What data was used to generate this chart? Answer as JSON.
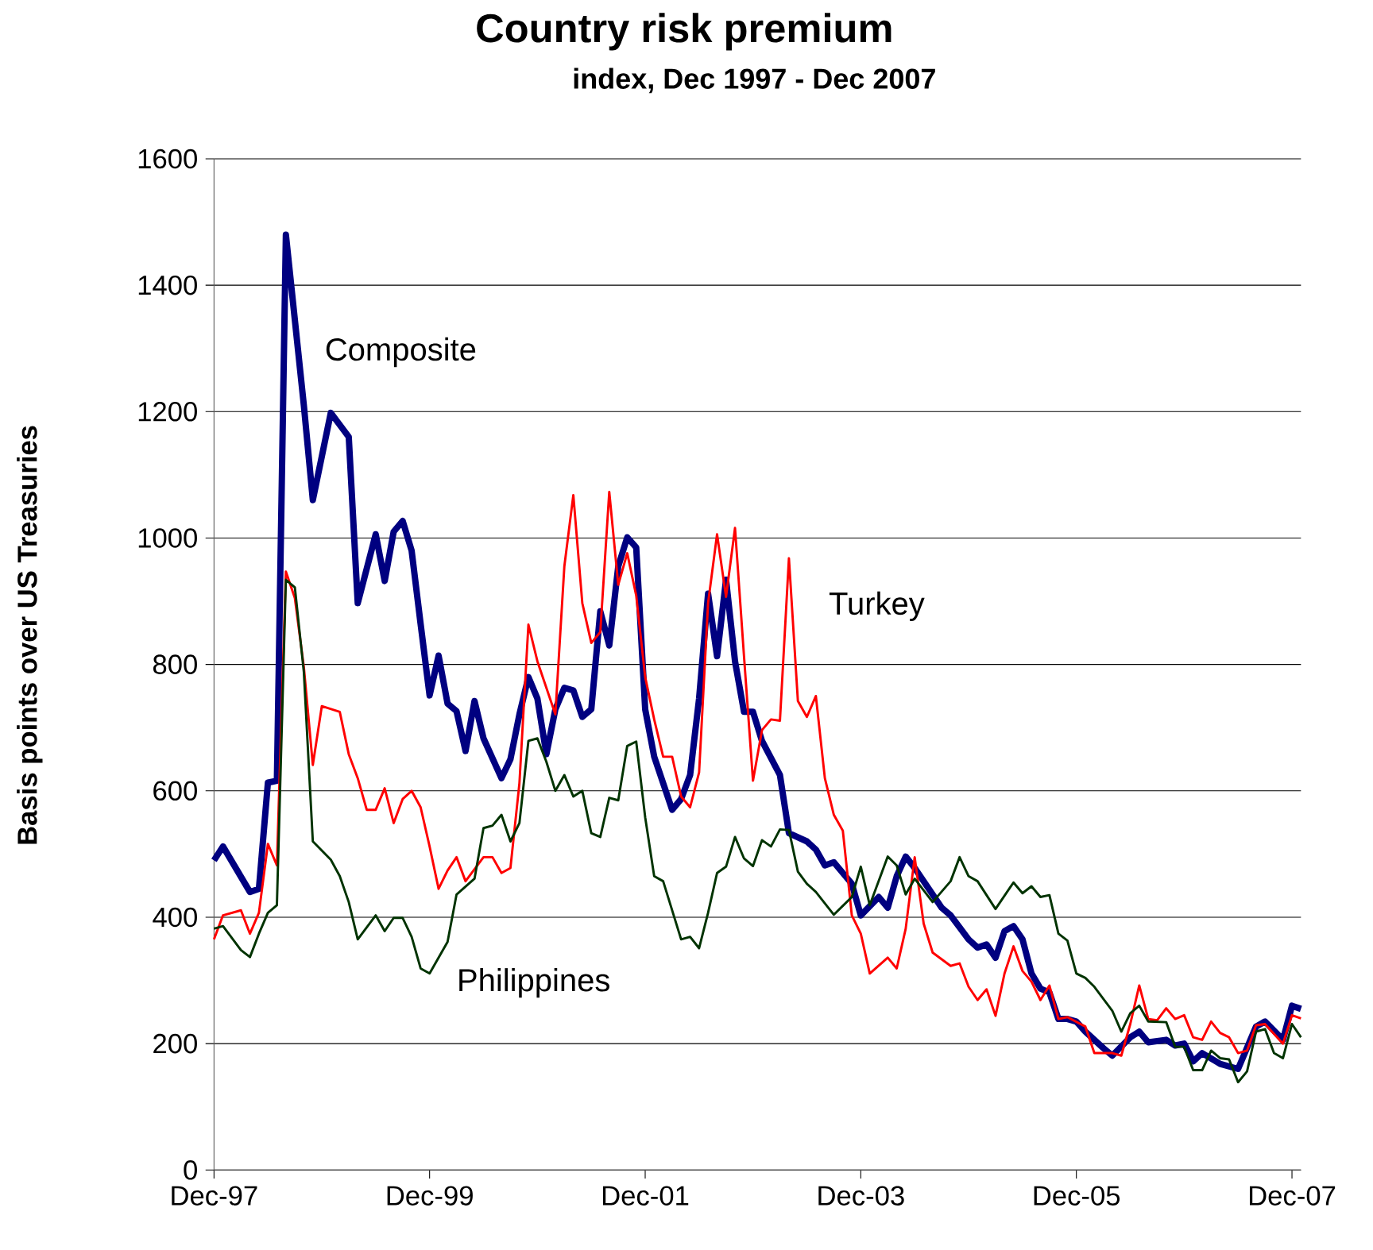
{
  "chart_data": {
    "type": "line",
    "title": "Country risk premium",
    "subtitle": "index, Dec 1997 - Dec 2007",
    "ylabel": "Basis points over US Treasuries",
    "xlim": [
      "1997-12",
      "2008-01"
    ],
    "ylim": [
      0,
      1600
    ],
    "xticks": [
      {
        "value": "1997-12",
        "label": "Dec-97"
      },
      {
        "value": "1999-12",
        "label": "Dec-99"
      },
      {
        "value": "2001-12",
        "label": "Dec-01"
      },
      {
        "value": "2003-12",
        "label": "Dec-03"
      },
      {
        "value": "2005-12",
        "label": "Dec-05"
      },
      {
        "value": "2007-12",
        "label": "Dec-07"
      }
    ],
    "yticks": [
      0,
      200,
      400,
      600,
      800,
      1000,
      1200,
      1400,
      1600
    ],
    "grid": "y",
    "legend": false,
    "marker": "none",
    "line_style": "solid",
    "series": [
      {
        "name": "Composite",
        "color": "#000080",
        "x": [
          "1997-12",
          "1998-01",
          "1998-04",
          "1998-05",
          "1998-06",
          "1998-07",
          "1998-08",
          "1998-10",
          "1998-11",
          "1999-01",
          "1999-03",
          "1999-04",
          "1999-06",
          "1999-07",
          "1999-08",
          "1999-09",
          "1999-10",
          "1999-11",
          "1999-12",
          "2000-01",
          "2000-02",
          "2000-03",
          "2000-04",
          "2000-05",
          "2000-06",
          "2000-08",
          "2000-09",
          "2000-10",
          "2000-11",
          "2000-12",
          "2001-01",
          "2001-02",
          "2001-03",
          "2001-04",
          "2001-05",
          "2001-06",
          "2001-07",
          "2001-08",
          "2001-09",
          "2001-10",
          "2001-11",
          "2001-12",
          "2002-01",
          "2002-03",
          "2002-04",
          "2002-05",
          "2002-06",
          "2002-07",
          "2002-08",
          "2002-09",
          "2002-10",
          "2002-11",
          "2002-12",
          "2003-01",
          "2003-03",
          "2003-04",
          "2003-06",
          "2003-07",
          "2003-08",
          "2003-09",
          "2003-11",
          "2003-12",
          "2004-02",
          "2004-03",
          "2004-04",
          "2004-05",
          "2004-06",
          "2004-09",
          "2004-10",
          "2004-12",
          "2005-01",
          "2005-02",
          "2005-03",
          "2005-04",
          "2005-05",
          "2005-06",
          "2005-07",
          "2005-08",
          "2005-09",
          "2005-10",
          "2005-11",
          "2005-12",
          "2006-01",
          "2006-03",
          "2006-04",
          "2006-06",
          "2006-07",
          "2006-08",
          "2006-10",
          "2006-11",
          "2006-12",
          "2007-01",
          "2007-02",
          "2007-04",
          "2007-06",
          "2007-08",
          "2007-09",
          "2007-11",
          "2007-12",
          "2008-01"
        ],
        "values": [
          490,
          512,
          440,
          445,
          613,
          616,
          1480,
          1210,
          1060,
          1198,
          1160,
          897,
          1006,
          932,
          1010,
          1027,
          980,
          864,
          751,
          814,
          738,
          726,
          663,
          742,
          683,
          620,
          650,
          721,
          780,
          746,
          658,
          729,
          763,
          759,
          717,
          729,
          884,
          830,
          955,
          1001,
          985,
          729,
          654,
          570,
          587,
          625,
          746,
          912,
          813,
          934,
          805,
          725,
          725,
          679,
          625,
          533,
          520,
          507,
          482,
          487,
          453,
          403,
          432,
          415,
          465,
          496,
          478,
          415,
          403,
          365,
          352,
          357,
          336,
          378,
          386,
          365,
          311,
          287,
          281,
          239,
          239,
          235,
          219,
          193,
          181,
          210,
          219,
          202,
          206,
          197,
          200,
          172,
          185,
          168,
          160,
          227,
          235,
          206,
          260,
          255
        ]
      },
      {
        "name": "Turkey",
        "color": "#ff0000",
        "x": [
          "1997-12",
          "1998-01",
          "1998-03",
          "1998-04",
          "1998-05",
          "1998-06",
          "1998-07",
          "1998-08",
          "1998-09",
          "1998-10",
          "1998-11",
          "1998-12",
          "1999-02",
          "1999-03",
          "1999-04",
          "1999-05",
          "1999-06",
          "1999-07",
          "1999-08",
          "1999-09",
          "1999-10",
          "1999-11",
          "1999-12",
          "2000-01",
          "2000-02",
          "2000-03",
          "2000-04",
          "2000-06",
          "2000-07",
          "2000-08",
          "2000-09",
          "2000-10",
          "2000-11",
          "2000-12",
          "2001-02",
          "2001-03",
          "2001-04",
          "2001-05",
          "2001-06",
          "2001-07",
          "2001-08",
          "2001-09",
          "2001-10",
          "2001-11",
          "2001-12",
          "2002-01",
          "2002-02",
          "2002-03",
          "2002-04",
          "2002-05",
          "2002-06",
          "2002-07",
          "2002-08",
          "2002-09",
          "2002-10",
          "2002-11",
          "2002-12",
          "2003-01",
          "2003-02",
          "2003-03",
          "2003-04",
          "2003-05",
          "2003-06",
          "2003-07",
          "2003-08",
          "2003-09",
          "2003-10",
          "2003-11",
          "2003-12",
          "2004-01",
          "2004-03",
          "2004-04",
          "2004-05",
          "2004-06",
          "2004-07",
          "2004-08",
          "2004-10",
          "2004-11",
          "2004-12",
          "2005-01",
          "2005-02",
          "2005-03",
          "2005-04",
          "2005-05",
          "2005-06",
          "2005-07",
          "2005-08",
          "2005-09",
          "2005-10",
          "2005-11",
          "2006-01",
          "2006-02",
          "2006-04",
          "2006-05",
          "2006-06",
          "2006-07",
          "2006-08",
          "2006-09",
          "2006-10",
          "2006-11",
          "2006-12",
          "2007-01",
          "2007-02",
          "2007-03",
          "2007-04",
          "2007-05",
          "2007-06",
          "2007-07",
          "2007-08",
          "2007-09",
          "2007-11",
          "2007-12",
          "2008-01"
        ],
        "values": [
          365,
          403,
          411,
          374,
          407,
          516,
          482,
          947,
          905,
          796,
          641,
          734,
          725,
          658,
          620,
          570,
          570,
          604,
          549,
          587,
          600,
          574,
          512,
          445,
          474,
          495,
          457,
          495,
          495,
          470,
          478,
          612,
          863,
          805,
          721,
          955,
          1068,
          897,
          834,
          851,
          1073,
          926,
          976,
          909,
          780,
          713,
          654,
          654,
          591,
          574,
          629,
          897,
          1006,
          907,
          1016,
          813,
          616,
          696,
          713,
          711,
          968,
          742,
          717,
          750,
          620,
          562,
          537,
          403,
          374,
          311,
          336,
          319,
          382,
          495,
          390,
          344,
          323,
          327,
          290,
          269,
          286,
          244,
          311,
          354,
          315,
          298,
          269,
          292,
          239,
          242,
          227,
          185,
          185,
          181,
          231,
          292,
          239,
          237,
          256,
          239,
          245,
          210,
          206,
          235,
          217,
          210,
          185,
          189,
          229,
          231,
          200,
          245,
          240
        ]
      },
      {
        "name": "Philippines",
        "color": "#003300",
        "x": [
          "1997-12",
          "1998-01",
          "1998-03",
          "1998-04",
          "1998-05",
          "1998-06",
          "1998-07",
          "1998-08",
          "1998-09",
          "1998-10",
          "1998-11",
          "1999-01",
          "1999-02",
          "1999-03",
          "1999-04",
          "1999-06",
          "1999-07",
          "1999-08",
          "1999-09",
          "1999-10",
          "1999-11",
          "1999-12",
          "2000-02",
          "2000-03",
          "2000-05",
          "2000-06",
          "2000-07",
          "2000-08",
          "2000-09",
          "2000-10",
          "2000-11",
          "2000-12",
          "2001-01",
          "2001-02",
          "2001-03",
          "2001-04",
          "2001-05",
          "2001-06",
          "2001-07",
          "2001-08",
          "2001-09",
          "2001-10",
          "2001-11",
          "2001-12",
          "2002-01",
          "2002-02",
          "2002-04",
          "2002-05",
          "2002-06",
          "2002-07",
          "2002-08",
          "2002-09",
          "2002-10",
          "2002-11",
          "2002-12",
          "2003-01",
          "2003-02",
          "2003-03",
          "2003-04",
          "2003-05",
          "2003-06",
          "2003-07",
          "2003-09",
          "2003-10",
          "2003-11",
          "2003-12",
          "2004-01",
          "2004-03",
          "2004-04",
          "2004-05",
          "2004-06",
          "2004-08",
          "2004-10",
          "2004-11",
          "2004-12",
          "2005-01",
          "2005-03",
          "2005-05",
          "2005-06",
          "2005-07",
          "2005-08",
          "2005-09",
          "2005-10",
          "2005-11",
          "2005-12",
          "2006-01",
          "2006-02",
          "2006-04",
          "2006-05",
          "2006-06",
          "2006-07",
          "2006-08",
          "2006-10",
          "2006-11",
          "2006-12",
          "2007-01",
          "2007-02",
          "2007-03",
          "2007-04",
          "2007-05",
          "2007-06",
          "2007-07",
          "2007-08",
          "2007-09",
          "2007-10",
          "2007-11",
          "2007-12",
          "2008-01"
        ],
        "values": [
          382,
          386,
          348,
          337,
          374,
          407,
          419,
          934,
          922,
          788,
          520,
          491,
          465,
          424,
          365,
          403,
          378,
          399,
          399,
          369,
          319,
          311,
          361,
          436,
          461,
          541,
          545,
          562,
          520,
          549,
          679,
          683,
          646,
          600,
          625,
          591,
          600,
          533,
          527,
          589,
          585,
          671,
          678,
          558,
          465,
          457,
          365,
          369,
          351,
          407,
          470,
          480,
          527,
          493,
          481,
          522,
          512,
          539,
          538,
          472,
          453,
          440,
          404,
          418,
          432,
          480,
          419,
          496,
          482,
          436,
          461,
          424,
          457,
          495,
          465,
          457,
          413,
          455,
          438,
          449,
          432,
          435,
          374,
          363,
          311,
          304,
          290,
          252,
          219,
          248,
          260,
          235,
          234,
          195,
          195,
          158,
          158,
          189,
          177,
          175,
          139,
          156,
          219,
          223,
          185,
          177,
          231,
          210
        ]
      }
    ]
  }
}
